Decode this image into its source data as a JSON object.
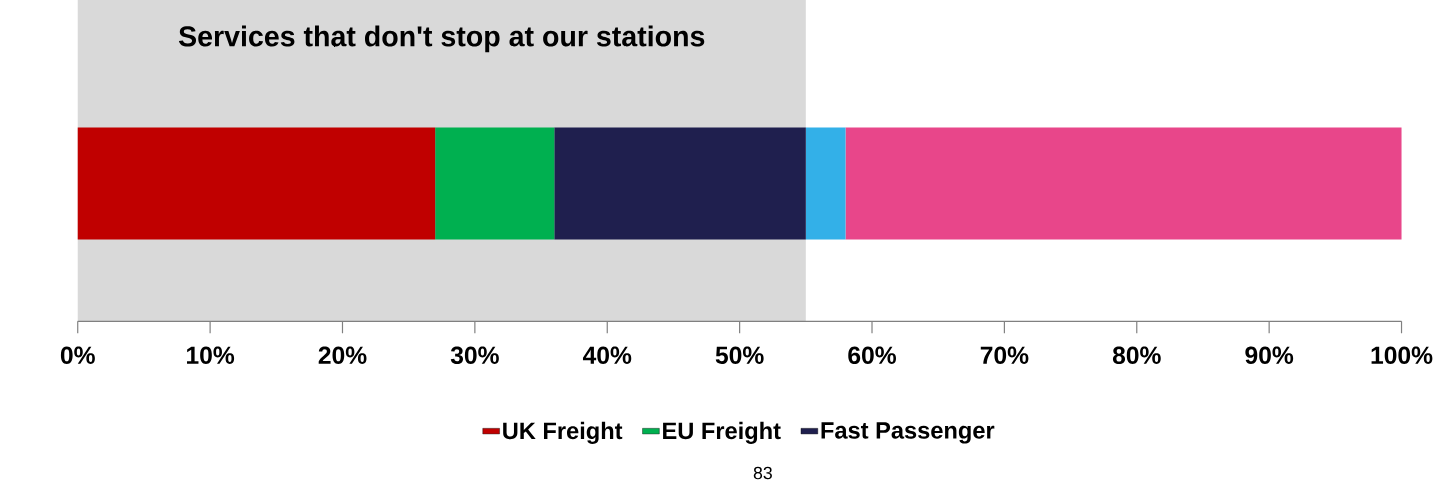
{
  "chart_data": {
    "type": "bar",
    "orientation": "horizontal",
    "stacked": true,
    "categories": [
      null
    ],
    "series": [
      {
        "name": "UK Freight",
        "color": "#c00000",
        "values": [
          27
        ]
      },
      {
        "name": "EU Freight",
        "color": "#00b050",
        "values": [
          9
        ]
      },
      {
        "name": "Fast Passenger",
        "color": "#1f1f4e",
        "values": [
          19
        ]
      },
      {
        "color": "#33b0e8",
        "values": [
          3
        ]
      },
      {
        "color": "#e8468a",
        "values": [
          42
        ]
      }
    ],
    "xlim": [
      0,
      100
    ],
    "xticks": [
      {
        "value": 0,
        "label": "0%"
      },
      {
        "value": 10,
        "label": "10%"
      },
      {
        "value": 20,
        "label": "20%"
      },
      {
        "value": 30,
        "label": "30%"
      },
      {
        "value": 40,
        "label": "40%"
      },
      {
        "value": 50,
        "label": "50%"
      },
      {
        "value": 60,
        "label": "60%"
      },
      {
        "value": 70,
        "label": "70%"
      },
      {
        "value": 80,
        "label": "80%"
      },
      {
        "value": 90,
        "label": "90%"
      },
      {
        "value": 100,
        "label": "100%"
      }
    ],
    "bands": [
      {
        "axis": "x",
        "from": 0,
        "to": 55,
        "label": "Services that don't stop at our stations",
        "color": "#d9d9d9"
      }
    ],
    "legend": "bottom",
    "annotations": [
      "83"
    ]
  }
}
